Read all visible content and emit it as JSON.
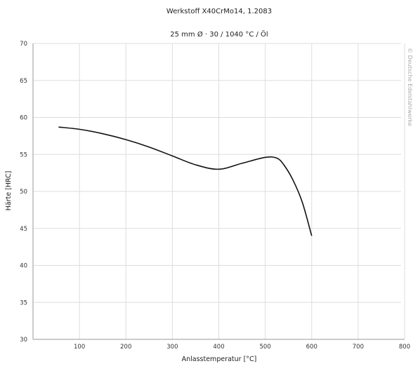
{
  "header": {
    "title": "Werkstoff X40CrMo14, 1.2083",
    "subtitle": "25 mm Ø · 30 / 1040 °C / Öl"
  },
  "side_note": "© Deutsche Edelstahlwerke",
  "chart_data": {
    "type": "line",
    "title": "Werkstoff X40CrMo14, 1.2083",
    "subtitle": "25 mm Ø · 30 / 1040 °C / Öl",
    "xlabel": "Anlasstemperatur [°C]",
    "ylabel": "Härte [HRC]",
    "xlim": [
      0,
      800
    ],
    "ylim": [
      30,
      70
    ],
    "xticks": [
      0,
      100,
      200,
      300,
      400,
      500,
      600,
      700,
      800
    ],
    "yticks": [
      30,
      35,
      40,
      45,
      50,
      55,
      60,
      65,
      70
    ],
    "x_tick_labels": [
      "",
      "100",
      "200",
      "300",
      "400",
      "500",
      "600",
      "700",
      "800"
    ],
    "y_tick_labels": [
      "30",
      "35",
      "40",
      "45",
      "50",
      "55",
      "60",
      "65",
      "70"
    ],
    "grid": true,
    "legend": "none",
    "series": [
      {
        "color": "#111111",
        "x": [
          55,
          100,
          150,
          200,
          250,
          300,
          350,
          400,
          450,
          500,
          525,
          540,
          560,
          580,
          600
        ],
        "y": [
          58.7,
          58.4,
          57.8,
          57.0,
          56.0,
          54.8,
          53.6,
          53.0,
          53.8,
          54.6,
          54.5,
          53.6,
          51.5,
          48.5,
          44.0
        ]
      }
    ]
  }
}
